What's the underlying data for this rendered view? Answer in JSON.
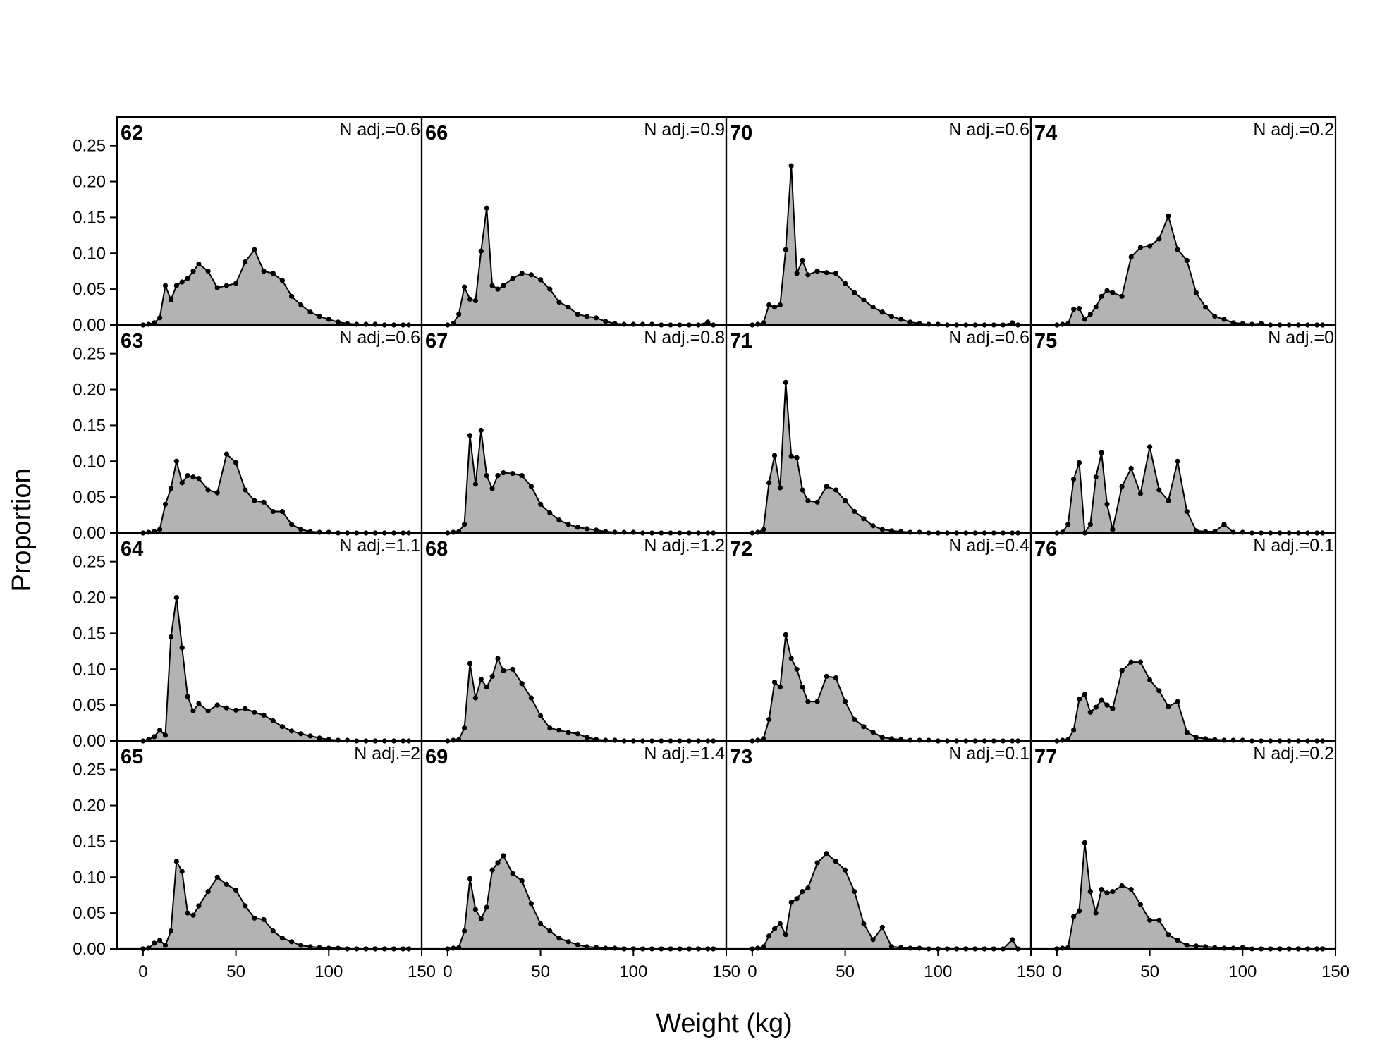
{
  "chart_data": {
    "type": "area",
    "xlabel": "Weight (kg)",
    "ylabel": "Proportion",
    "xlim": [
      -14,
      150
    ],
    "ylim": [
      0,
      0.29
    ],
    "x_ticks": [
      0,
      50,
      100,
      150
    ],
    "x_tick_labels": [
      "0",
      "50",
      "100",
      "150"
    ],
    "y_ticks": [
      0,
      0.05,
      0.1,
      0.15,
      0.2,
      0.25
    ],
    "y_tick_labels": [
      "0.00",
      "0.05",
      "0.10",
      "0.15",
      "0.20",
      "0.25"
    ],
    "x": [
      0,
      3,
      6,
      9,
      12,
      15,
      18,
      21,
      24,
      27,
      30,
      35,
      40,
      45,
      50,
      55,
      60,
      65,
      70,
      75,
      80,
      85,
      90,
      95,
      100,
      105,
      110,
      115,
      120,
      125,
      130,
      135,
      140,
      143
    ],
    "fill_color": "#b3b3b3",
    "line_color": "#000000",
    "panels": [
      {
        "label": "62",
        "n_adj_label": "N adj.=0.6",
        "values": [
          0,
          0.001,
          0.003,
          0.01,
          0.055,
          0.035,
          0.055,
          0.06,
          0.065,
          0.075,
          0.085,
          0.075,
          0.052,
          0.055,
          0.058,
          0.088,
          0.105,
          0.075,
          0.072,
          0.062,
          0.04,
          0.028,
          0.018,
          0.012,
          0.008,
          0.004,
          0.002,
          0.001,
          0.001,
          0.001,
          0,
          0,
          0,
          0
        ]
      },
      {
        "label": "63",
        "n_adj_label": "N adj.=0.6",
        "values": [
          0,
          0.001,
          0.002,
          0.005,
          0.04,
          0.062,
          0.1,
          0.07,
          0.08,
          0.078,
          0.076,
          0.06,
          0.056,
          0.11,
          0.098,
          0.06,
          0.045,
          0.043,
          0.03,
          0.03,
          0.012,
          0.005,
          0.002,
          0.001,
          0.001,
          0,
          0,
          0,
          0,
          0,
          0,
          0,
          0,
          0
        ]
      },
      {
        "label": "64",
        "n_adj_label": "N adj.=1.1",
        "values": [
          0,
          0.002,
          0.006,
          0.015,
          0.008,
          0.145,
          0.2,
          0.13,
          0.062,
          0.042,
          0.052,
          0.042,
          0.05,
          0.046,
          0.043,
          0.045,
          0.04,
          0.036,
          0.028,
          0.02,
          0.014,
          0.01,
          0.007,
          0.004,
          0.002,
          0.001,
          0.001,
          0,
          0,
          0,
          0,
          0,
          0,
          0
        ]
      },
      {
        "label": "65",
        "n_adj_label": "N adj.=2",
        "values": [
          0,
          0.001,
          0.008,
          0.012,
          0.005,
          0.025,
          0.122,
          0.108,
          0.05,
          0.047,
          0.06,
          0.08,
          0.1,
          0.09,
          0.082,
          0.06,
          0.043,
          0.041,
          0.025,
          0.015,
          0.01,
          0.005,
          0.003,
          0.002,
          0.001,
          0.001,
          0,
          0,
          0,
          0,
          0,
          0,
          0,
          0
        ]
      },
      {
        "label": "66",
        "n_adj_label": "N adj.=0.9",
        "values": [
          0,
          0.002,
          0.015,
          0.053,
          0.036,
          0.034,
          0.103,
          0.163,
          0.055,
          0.05,
          0.055,
          0.065,
          0.072,
          0.07,
          0.063,
          0.05,
          0.032,
          0.025,
          0.015,
          0.012,
          0.01,
          0.005,
          0.002,
          0.001,
          0.001,
          0.001,
          0.001,
          0,
          0,
          0,
          0,
          0,
          0.004,
          0
        ]
      },
      {
        "label": "67",
        "n_adj_label": "N adj.=0.8",
        "values": [
          0,
          0.001,
          0.002,
          0.012,
          0.136,
          0.068,
          0.143,
          0.08,
          0.062,
          0.08,
          0.084,
          0.083,
          0.08,
          0.065,
          0.04,
          0.028,
          0.018,
          0.012,
          0.008,
          0.006,
          0.004,
          0.002,
          0.001,
          0.001,
          0.001,
          0,
          0,
          0,
          0,
          0,
          0,
          0,
          0,
          0
        ]
      },
      {
        "label": "68",
        "n_adj_label": "N adj.=1.2",
        "values": [
          0,
          0.001,
          0.002,
          0.018,
          0.108,
          0.06,
          0.086,
          0.075,
          0.09,
          0.115,
          0.098,
          0.1,
          0.08,
          0.06,
          0.035,
          0.018,
          0.015,
          0.012,
          0.01,
          0.005,
          0.002,
          0.001,
          0.001,
          0,
          0,
          0,
          0,
          0,
          0,
          0,
          0,
          0,
          0,
          0
        ]
      },
      {
        "label": "69",
        "n_adj_label": "N adj.=1.4",
        "values": [
          0,
          0.001,
          0.002,
          0.025,
          0.098,
          0.055,
          0.042,
          0.058,
          0.11,
          0.12,
          0.13,
          0.105,
          0.095,
          0.063,
          0.035,
          0.025,
          0.015,
          0.01,
          0.006,
          0.003,
          0.002,
          0.001,
          0.001,
          0,
          0,
          0,
          0,
          0,
          0,
          0,
          0,
          0,
          0,
          0
        ]
      },
      {
        "label": "70",
        "n_adj_label": "N adj.=0.6",
        "values": [
          0,
          0.001,
          0.003,
          0.028,
          0.025,
          0.028,
          0.105,
          0.222,
          0.072,
          0.09,
          0.07,
          0.075,
          0.073,
          0.072,
          0.058,
          0.045,
          0.035,
          0.025,
          0.018,
          0.012,
          0.008,
          0.004,
          0.002,
          0.001,
          0.001,
          0,
          0,
          0,
          0,
          0,
          0,
          0,
          0.003,
          0
        ]
      },
      {
        "label": "71",
        "n_adj_label": "N adj.=0.6",
        "values": [
          0,
          0.001,
          0.005,
          0.07,
          0.108,
          0.063,
          0.21,
          0.107,
          0.105,
          0.06,
          0.045,
          0.043,
          0.065,
          0.06,
          0.045,
          0.03,
          0.02,
          0.01,
          0.005,
          0.003,
          0.002,
          0.001,
          0.001,
          0,
          0,
          0,
          0,
          0,
          0,
          0,
          0,
          0,
          0,
          0
        ]
      },
      {
        "label": "72",
        "n_adj_label": "N adj.=0.4",
        "values": [
          0,
          0.001,
          0.003,
          0.03,
          0.082,
          0.075,
          0.148,
          0.115,
          0.1,
          0.075,
          0.055,
          0.055,
          0.09,
          0.088,
          0.055,
          0.03,
          0.02,
          0.012,
          0.005,
          0.003,
          0.002,
          0.001,
          0.001,
          0.001,
          0,
          0,
          0,
          0,
          0,
          0,
          0,
          0,
          0,
          0
        ]
      },
      {
        "label": "73",
        "n_adj_label": "N adj.=0.1",
        "values": [
          0,
          0.001,
          0.003,
          0.018,
          0.028,
          0.035,
          0.02,
          0.065,
          0.07,
          0.08,
          0.085,
          0.12,
          0.133,
          0.122,
          0.11,
          0.08,
          0.035,
          0.013,
          0.03,
          0.003,
          0.002,
          0.001,
          0.001,
          0,
          0,
          0,
          0,
          0,
          0,
          0,
          0,
          0,
          0.013,
          0
        ]
      },
      {
        "label": "74",
        "n_adj_label": "N adj.=0.2",
        "values": [
          0,
          0.001,
          0.002,
          0.022,
          0.023,
          0.008,
          0.015,
          0.025,
          0.04,
          0.048,
          0.045,
          0.04,
          0.095,
          0.108,
          0.11,
          0.12,
          0.152,
          0.105,
          0.09,
          0.045,
          0.025,
          0.012,
          0.008,
          0.003,
          0.002,
          0.001,
          0.002,
          0,
          0,
          0,
          0,
          0,
          0,
          0
        ]
      },
      {
        "label": "75",
        "n_adj_label": "N adj.=0",
        "values": [
          0,
          0.001,
          0.012,
          0.075,
          0.098,
          0,
          0.012,
          0.078,
          0.112,
          0.04,
          0.005,
          0.065,
          0.09,
          0.055,
          0.12,
          0.06,
          0.045,
          0.1,
          0.03,
          0.003,
          0.002,
          0.002,
          0.012,
          0.001,
          0.001,
          0,
          0,
          0,
          0,
          0,
          0,
          0,
          0,
          0
        ]
      },
      {
        "label": "76",
        "n_adj_label": "N adj.=0.1",
        "values": [
          0,
          0.001,
          0.002,
          0.015,
          0.058,
          0.065,
          0.04,
          0.047,
          0.057,
          0.05,
          0.045,
          0.098,
          0.11,
          0.11,
          0.085,
          0.07,
          0.048,
          0.055,
          0.012,
          0.005,
          0.003,
          0.002,
          0.001,
          0.001,
          0.001,
          0,
          0,
          0,
          0,
          0,
          0,
          0,
          0,
          0
        ]
      },
      {
        "label": "77",
        "n_adj_label": "N adj.=0.2",
        "values": [
          0,
          0.001,
          0.002,
          0.045,
          0.053,
          0.148,
          0.08,
          0.05,
          0.083,
          0.078,
          0.08,
          0.088,
          0.083,
          0.062,
          0.04,
          0.04,
          0.02,
          0.012,
          0.005,
          0.004,
          0.003,
          0.002,
          0.001,
          0.001,
          0.002,
          0,
          0,
          0,
          0,
          0,
          0,
          0,
          0,
          0
        ]
      }
    ]
  }
}
